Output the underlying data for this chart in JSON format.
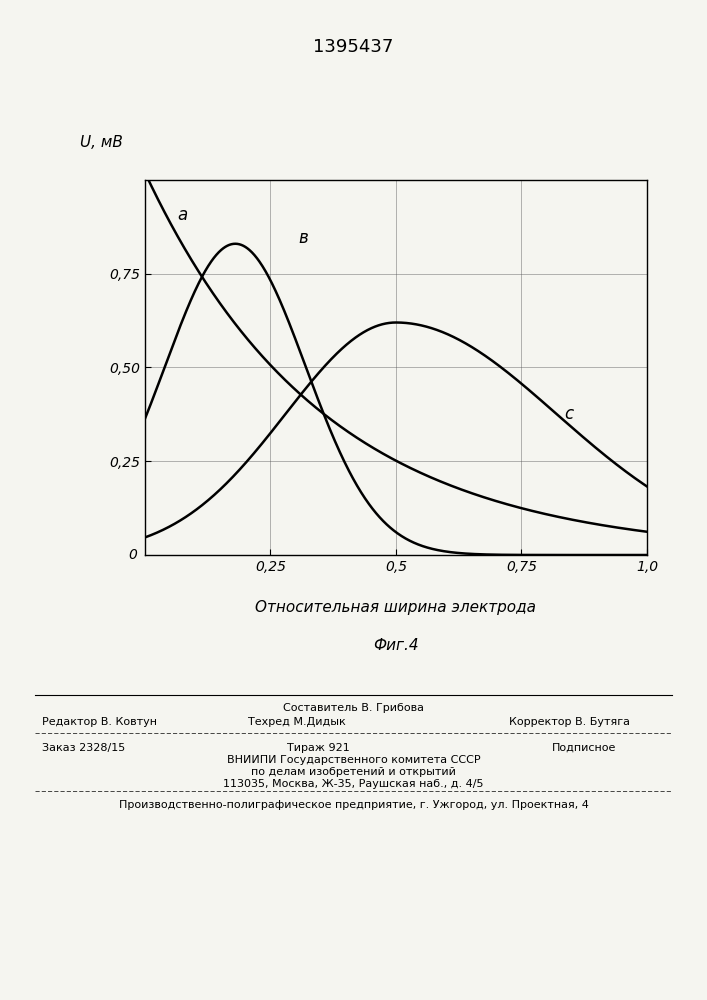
{
  "title": "1395437",
  "ylabel": "U, мВ",
  "xlabel": "Относительная ширина электрода",
  "fig_caption": "Фиг.4",
  "xlim": [
    0,
    1.0
  ],
  "ylim": [
    0,
    1.0
  ],
  "xticks": [
    0.25,
    0.5,
    0.75,
    1.0
  ],
  "yticks": [
    0.25,
    0.5,
    0.75
  ],
  "xtick_labels": [
    "0,25",
    "0,5",
    "0,75",
    "1,0"
  ],
  "ytick_labels": [
    "0,25",
    "0,50",
    "0,75"
  ],
  "curve_a_label": "а",
  "curve_b_label": "в",
  "curve_c_label": "с",
  "curve_color": "#000000",
  "background_color": "#f5f5f0",
  "grid_color": "#555555",
  "footer_line1_center": "Составитель В. Грибова",
  "footer_line1_left": "Редактор В. Ковтун",
  "footer_line2_center": "Техред М.Дидык",
  "footer_line1_right": "Корректор В. Бутяга",
  "footer_line3_left": "Заказ 2328/15",
  "footer_line3_center": "Тираж 921",
  "footer_line3_right": "Подписное",
  "footer_line4": "ВНИИПИ Государственного комитета СССР",
  "footer_line5": "по делам изобретений и открытий",
  "footer_line6": "113035, Москва, Ж-35, Раушская наб., д. 4/5",
  "footer_line7": "Производственно-полиграфическое предприятие, г. Ужгород, ул. Проектная, 4"
}
